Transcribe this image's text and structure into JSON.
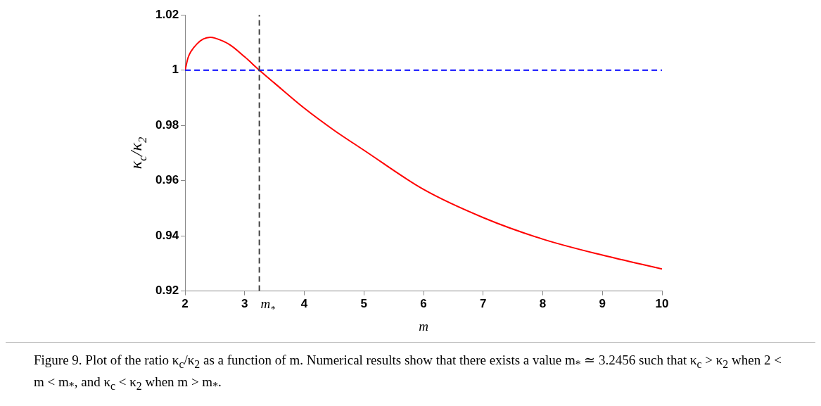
{
  "chart_data": {
    "type": "line",
    "xlabel": "m",
    "ylabel": "κ$_{c}$/κ$_{2}$",
    "x": [
      2,
      2.05,
      2.1,
      2.2,
      2.3,
      2.42,
      2.5,
      2.75,
      3,
      3.2456,
      3.5,
      4,
      4.5,
      5,
      6,
      7,
      8,
      9,
      10
    ],
    "series": [
      {
        "color": "#ff0000",
        "values": [
          1,
          1.0045,
          1.0068,
          1.0095,
          1.0112,
          1.0119,
          1.0116,
          1.0092,
          1.0048,
          1,
          0.9953,
          0.9862,
          0.9782,
          0.971,
          0.9568,
          0.9466,
          0.9388,
          0.933,
          0.928
        ]
      }
    ],
    "xlim": [
      2,
      10
    ],
    "xticks": [
      2,
      3,
      4,
      5,
      6,
      7,
      8,
      9,
      10
    ],
    "ylim": [
      0.92,
      1.02
    ],
    "yticks": [
      0.92,
      0.94,
      0.96,
      0.98,
      1,
      1.02
    ],
    "ref_lines": [
      {
        "axis": "y",
        "value": 1,
        "color": "#0000ff",
        "line_style": "dashed"
      },
      {
        "axis": "x",
        "value": 3.2456,
        "label": "m$_{*}$",
        "color": "#404040",
        "line_style": "dashed"
      }
    ],
    "grid": false,
    "legend": false,
    "marker": "none",
    "line_style": "solid",
    "annotations": [
      "Figure 9. Plot of the ratio κ$_{c}$/κ$_{2}$ as a function of m. Numerical results show that there exists a value m$_{*}$ ≃ 3.2456 such that κ$_{c}$ > κ$_{2}$ when 2 < m < m$_{*}$, and κ$_{c}$ < κ$_{2}$ when m > m$_{*}$."
    ]
  }
}
